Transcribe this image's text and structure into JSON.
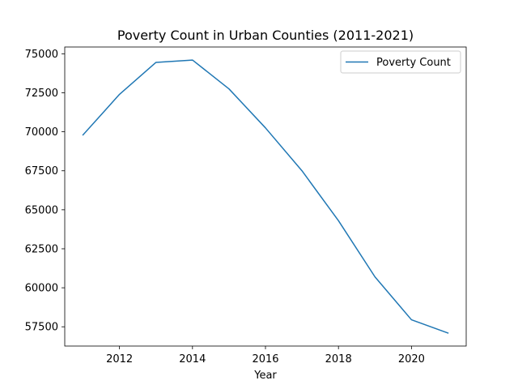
{
  "chart_data": {
    "type": "line",
    "title": "Poverty Count in Urban Counties (2011-2021)",
    "xlabel": "Year",
    "ylabel": "",
    "x": [
      2011,
      2012,
      2013,
      2014,
      2015,
      2016,
      2017,
      2018,
      2019,
      2020,
      2021
    ],
    "series": [
      {
        "name": "Poverty Count",
        "color": "#1f77b4",
        "values": [
          69800,
          72400,
          74450,
          74600,
          72750,
          70250,
          67500,
          64300,
          60700,
          57950,
          57100
        ]
      }
    ],
    "xlim": [
      2010.5,
      2021.5
    ],
    "ylim": [
      56265,
      75435
    ],
    "xticks": [
      2012,
      2014,
      2016,
      2018,
      2020
    ],
    "xtick_labels": [
      "2012",
      "2014",
      "2016",
      "2018",
      "2020"
    ],
    "yticks": [
      57500,
      60000,
      62500,
      65000,
      67500,
      70000,
      72500,
      75000
    ],
    "ytick_labels": [
      "57500",
      "60000",
      "62500",
      "65000",
      "67500",
      "70000",
      "72500",
      "75000"
    ],
    "grid": false,
    "legend_position": "top-right"
  }
}
